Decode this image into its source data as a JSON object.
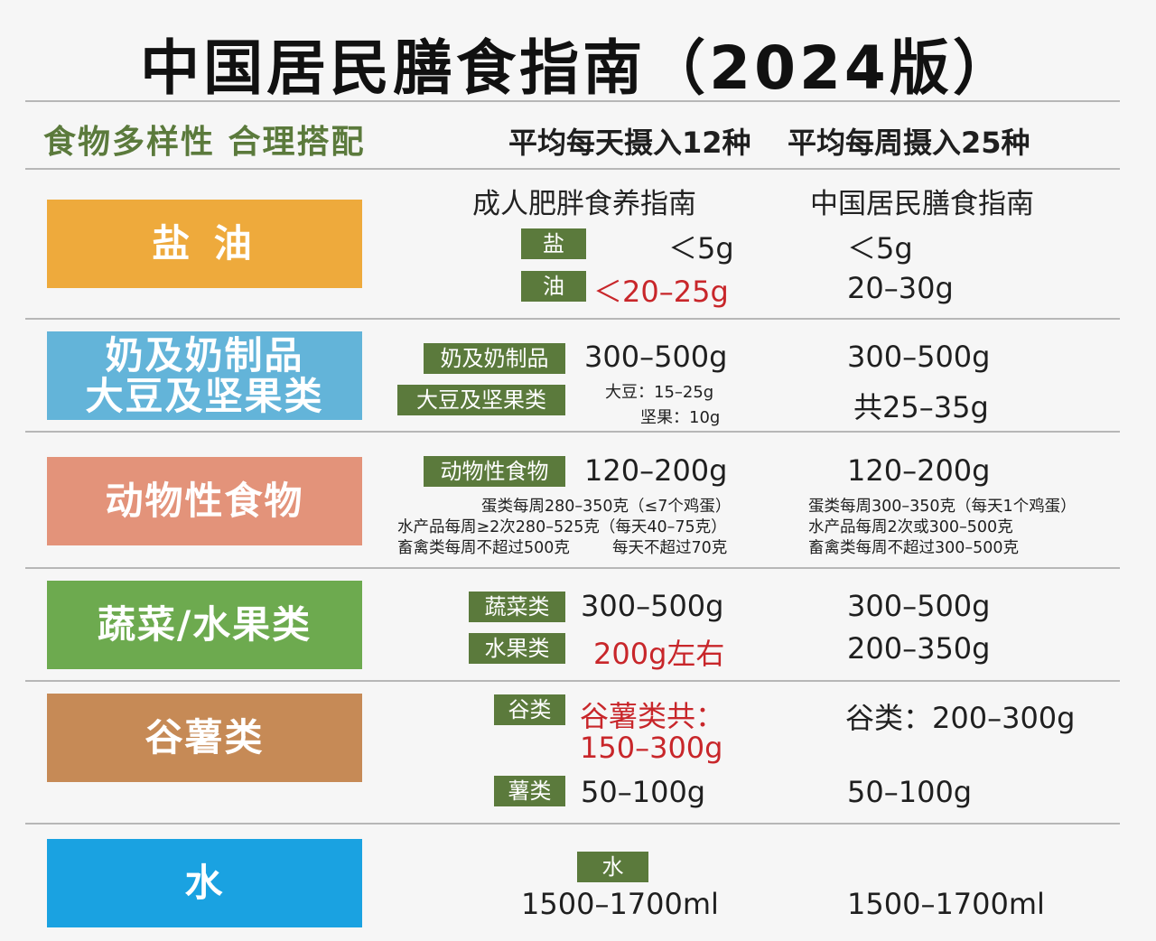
{
  "title": "中国居民膳食指南（2024版）",
  "subtitle": {
    "left": "食物多样性 合理搭配",
    "daily": "平均每天摄入12种",
    "weekly": "平均每周摄入25种"
  },
  "columns": {
    "obesity": "成人肥胖食养指南",
    "dietary": "中国居民膳食指南"
  },
  "colors": {
    "accent_green": "#5b7a3c",
    "salt_oil": "#eeaa3c",
    "dairy": "#63b4d9",
    "animal": "#e3937a",
    "veg_fruit": "#6daa4f",
    "grains": "#c68a56",
    "water": "#1aa2e1",
    "highlight_red": "#c8262a"
  },
  "sections": {
    "salt_oil": {
      "category": "盐 油",
      "salt_tag": "盐",
      "salt_obesity": "＜5g",
      "salt_dietary": "＜5g",
      "oil_tag": "油",
      "oil_obesity": "＜20–25g",
      "oil_dietary": "20–30g"
    },
    "dairy": {
      "category_line1": "奶及奶制品",
      "category_line2": "大豆及坚果类",
      "dairy_tag": "奶及奶制品",
      "dairy_obesity": "300–500g",
      "dairy_dietary": "300–500g",
      "soy_tag": "大豆及坚果类",
      "soy_obesity_1": "大豆：15–25g",
      "soy_obesity_2": "坚果：10g",
      "soy_dietary": "共25–35g"
    },
    "animal": {
      "category": "动物性食物",
      "tag": "动物性食物",
      "obesity": "120–200g",
      "dietary": "120–200g",
      "obesity_notes": [
        "蛋类每周280–350克（≤7个鸡蛋）",
        "水产品每周≥2次280–525克（每天40–75克）",
        "畜禽类每周不超过500克",
        "每天不超过70克"
      ],
      "dietary_notes": [
        "蛋类每周300–350克（每天1个鸡蛋）",
        "水产品每周2次或300–500克",
        "畜禽类每周不超过300–500克"
      ]
    },
    "veg_fruit": {
      "category": "蔬菜/水果类",
      "veg_tag": "蔬菜类",
      "veg_obesity": "300–500g",
      "veg_dietary": "300–500g",
      "fruit_tag": "水果类",
      "fruit_obesity": "200g左右",
      "fruit_dietary": "200–350g"
    },
    "grains": {
      "category": "谷薯类",
      "grain_tag": "谷类",
      "grain_obesity_1": "谷薯类共：",
      "grain_obesity_2": "150–300g",
      "grain_dietary": "谷类：200–300g",
      "tuber_tag": "薯类",
      "tuber_obesity": "50–100g",
      "tuber_dietary": "50–100g"
    },
    "water": {
      "category": "水",
      "tag": "水",
      "obesity": "1500–1700ml",
      "dietary": "1500–1700ml"
    }
  }
}
